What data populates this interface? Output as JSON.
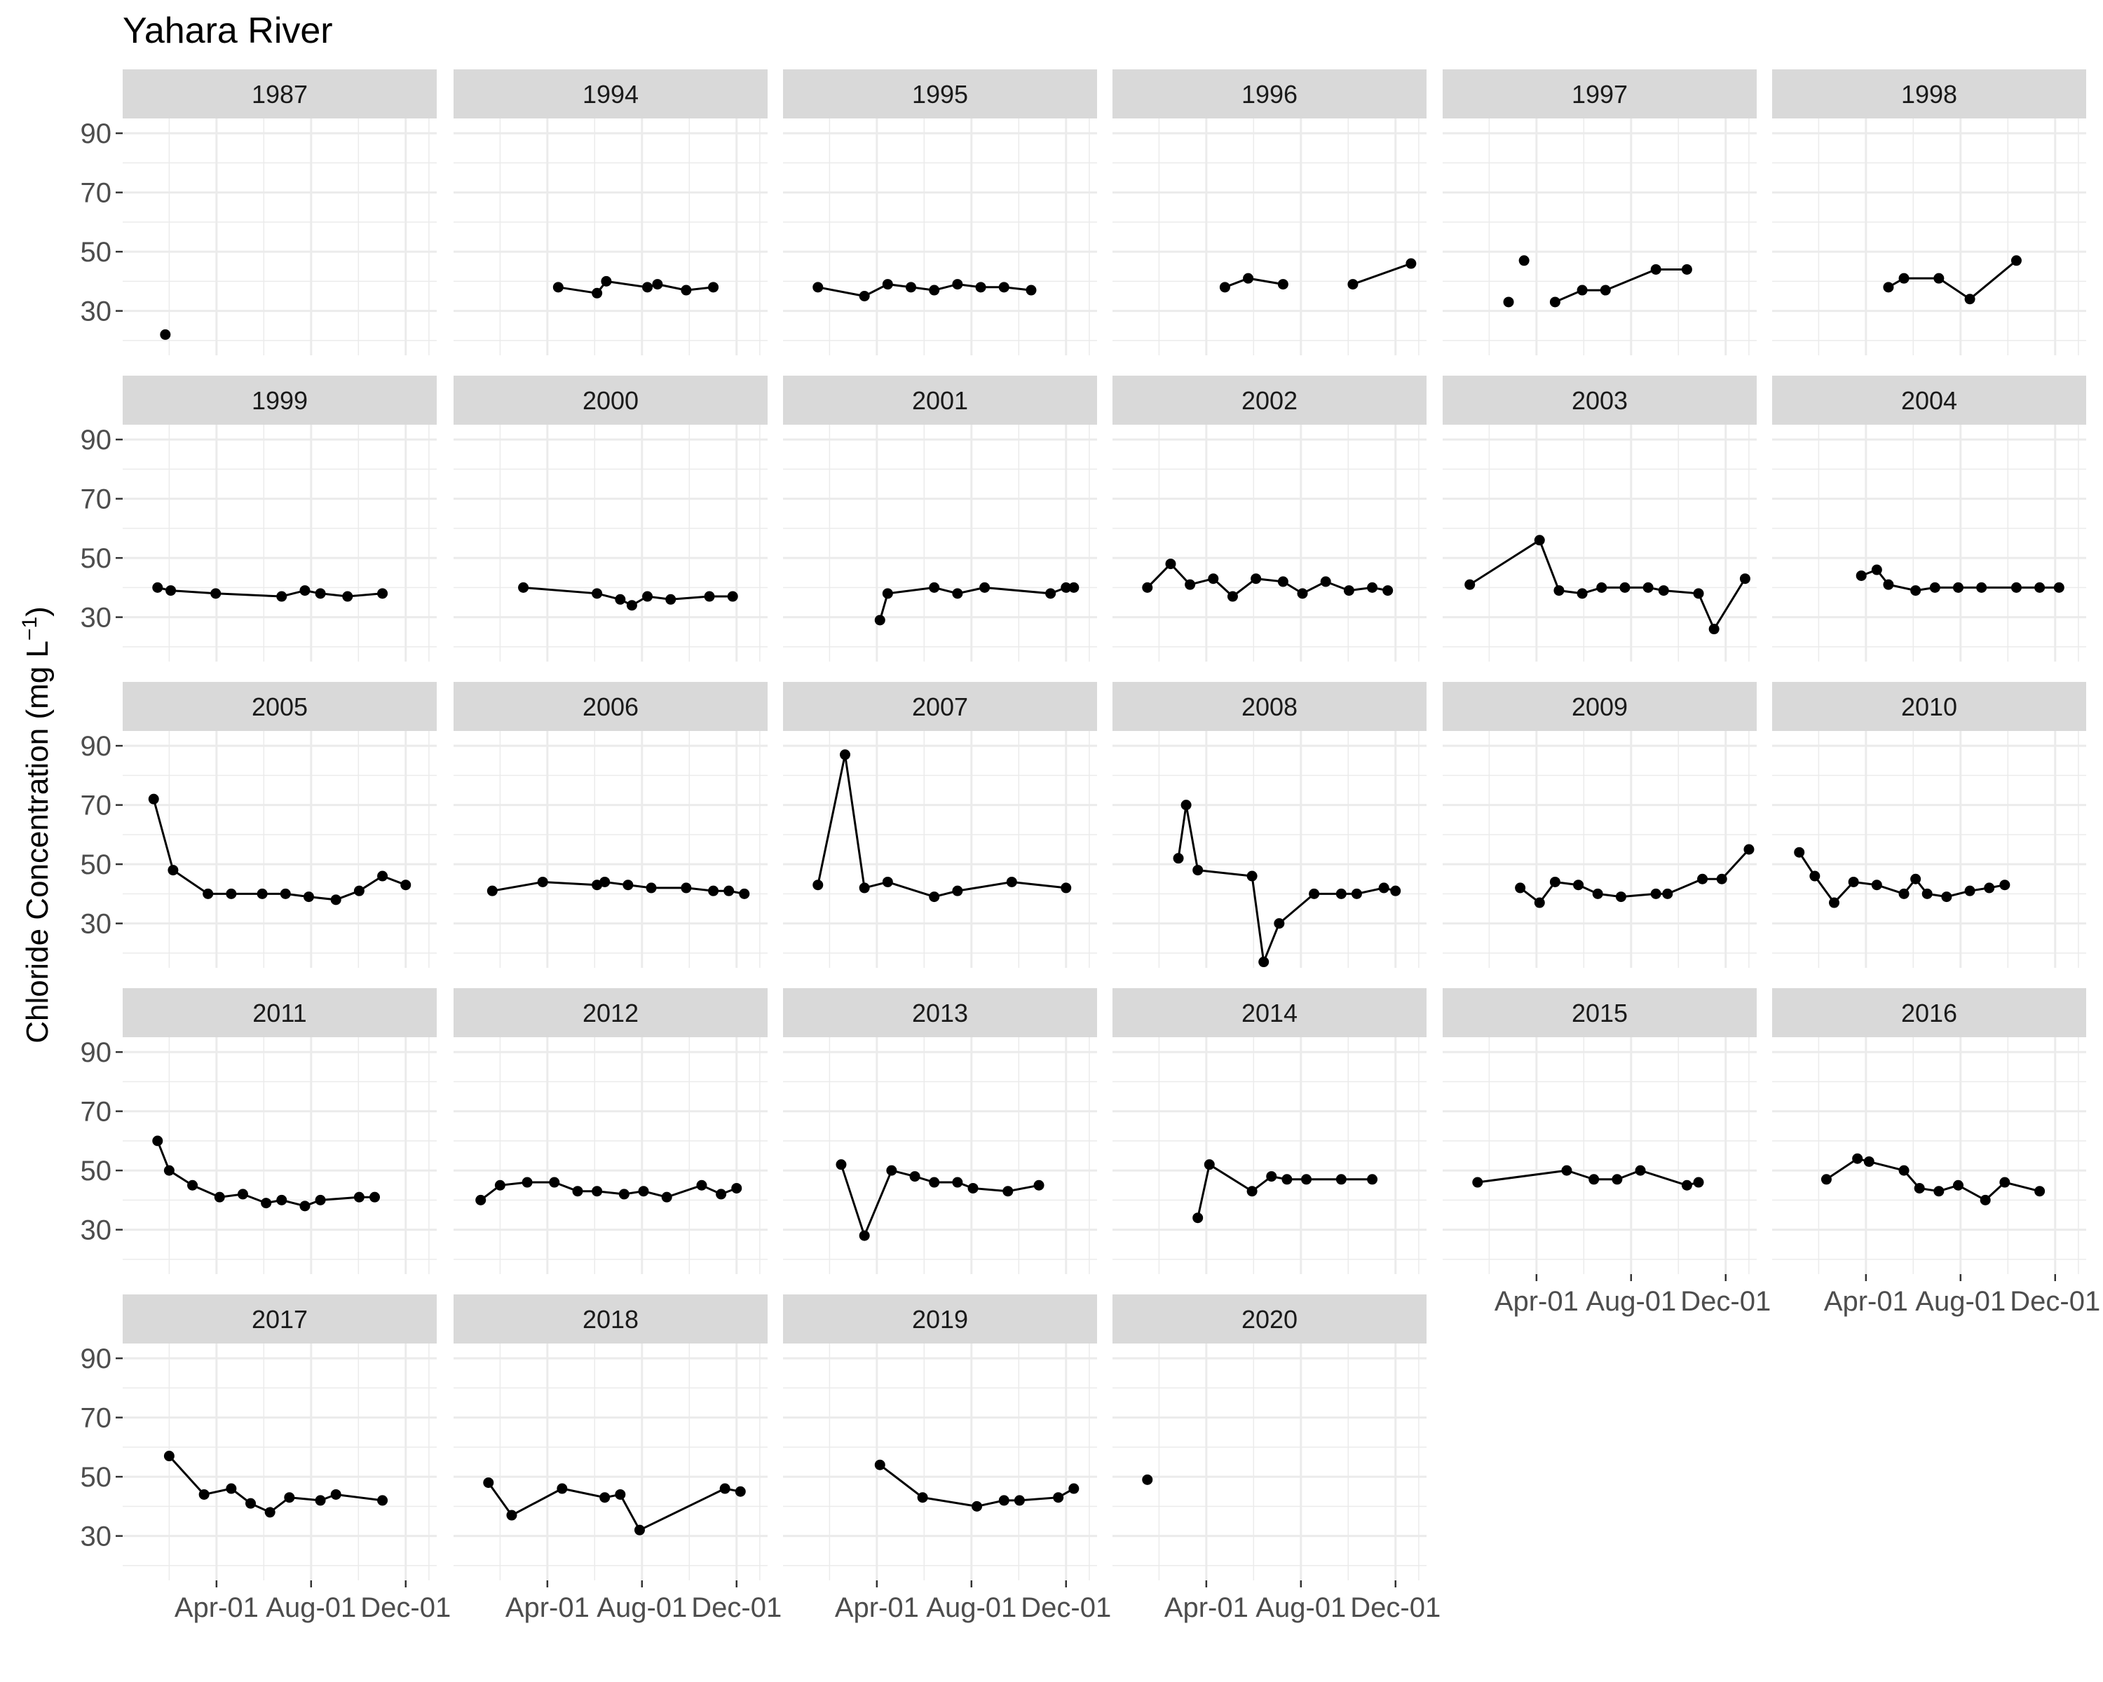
{
  "chart_data": {
    "type": "line",
    "title": "Yahara River",
    "ylabel": "Chloride Concentration (mg L",
    "ylabel_superscript": "−1",
    "ylabel_close": ")",
    "xlabel": "",
    "x_units": "day of year",
    "ylim": [
      15,
      95
    ],
    "xlim": [
      -30,
      375
    ],
    "yticks": [
      30,
      50,
      70,
      90
    ],
    "xticks": [
      {
        "label": "Apr-01",
        "value": 91
      },
      {
        "label": "Aug-01",
        "value": 213
      },
      {
        "label": "Dec-01",
        "value": 335
      }
    ],
    "grid": true,
    "legend": "none",
    "colors": {
      "strip": "#d9d9d9",
      "grid": "#ebebeb",
      "series": "#000000"
    },
    "panels": [
      {
        "year": "1987",
        "segments": [
          [
            [
              25,
              22
            ]
          ]
        ]
      },
      {
        "year": "1994",
        "segments": [
          [
            [
              105,
              38
            ],
            [
              155,
              36
            ],
            [
              167,
              40
            ],
            [
              220,
              38
            ],
            [
              233,
              39
            ],
            [
              270,
              37
            ],
            [
              305,
              38
            ]
          ]
        ]
      },
      {
        "year": "1995",
        "segments": [
          [
            [
              15,
              38
            ],
            [
              75,
              35
            ],
            [
              105,
              39
            ],
            [
              135,
              38
            ],
            [
              165,
              37
            ],
            [
              195,
              39
            ],
            [
              225,
              38
            ],
            [
              255,
              38
            ],
            [
              290,
              37
            ]
          ]
        ]
      },
      {
        "year": "1996",
        "segments": [
          [
            [
              115,
              38
            ],
            [
              145,
              41
            ],
            [
              190,
              39
            ]
          ],
          [
            [
              280,
              39
            ],
            [
              355,
              46
            ]
          ]
        ]
      },
      {
        "year": "1997",
        "segments": [
          [
            [
              55,
              33
            ]
          ],
          [
            [
              75,
              47
            ]
          ],
          [
            [
              115,
              33
            ],
            [
              150,
              37
            ],
            [
              180,
              37
            ],
            [
              245,
              44
            ],
            [
              285,
              44
            ]
          ]
        ]
      },
      {
        "year": "1998",
        "segments": [
          [
            [
              120,
              38
            ],
            [
              140,
              41
            ],
            [
              185,
              41
            ],
            [
              225,
              34
            ],
            [
              285,
              47
            ]
          ]
        ]
      },
      {
        "year": "1999",
        "segments": [
          [
            [
              15,
              40
            ],
            [
              32,
              39
            ],
            [
              90,
              38
            ],
            [
              175,
              37
            ],
            [
              205,
              39
            ],
            [
              225,
              38
            ],
            [
              260,
              37
            ],
            [
              305,
              38
            ]
          ]
        ]
      },
      {
        "year": "2000",
        "segments": [
          [
            [
              60,
              40
            ],
            [
              155,
              38
            ],
            [
              185,
              36
            ],
            [
              200,
              34
            ],
            [
              220,
              37
            ],
            [
              250,
              36
            ],
            [
              300,
              37
            ],
            [
              330,
              37
            ]
          ]
        ]
      },
      {
        "year": "2001",
        "segments": [
          [
            [
              95,
              29
            ],
            [
              105,
              38
            ],
            [
              165,
              40
            ],
            [
              195,
              38
            ],
            [
              230,
              40
            ],
            [
              315,
              38
            ],
            [
              335,
              40
            ],
            [
              345,
              40
            ]
          ]
        ]
      },
      {
        "year": "2002",
        "segments": [
          [
            [
              15,
              40
            ],
            [
              45,
              48
            ],
            [
              70,
              41
            ],
            [
              100,
              43
            ],
            [
              125,
              37
            ],
            [
              155,
              43
            ],
            [
              190,
              42
            ],
            [
              215,
              38
            ],
            [
              245,
              42
            ],
            [
              275,
              39
            ],
            [
              305,
              40
            ],
            [
              325,
              39
            ]
          ]
        ]
      },
      {
        "year": "2003",
        "segments": [
          [
            [
              5,
              41
            ],
            [
              95,
              56
            ],
            [
              120,
              39
            ],
            [
              150,
              38
            ],
            [
              175,
              40
            ],
            [
              205,
              40
            ],
            [
              235,
              40
            ],
            [
              255,
              39
            ],
            [
              300,
              38
            ],
            [
              320,
              26
            ],
            [
              360,
              43
            ]
          ]
        ]
      },
      {
        "year": "2004",
        "segments": [
          [
            [
              85,
              44
            ],
            [
              105,
              46
            ],
            [
              120,
              41
            ],
            [
              155,
              39
            ],
            [
              180,
              40
            ],
            [
              210,
              40
            ],
            [
              240,
              40
            ],
            [
              285,
              40
            ],
            [
              315,
              40
            ],
            [
              340,
              40
            ]
          ]
        ]
      },
      {
        "year": "2005",
        "segments": [
          [
            [
              10,
              72
            ],
            [
              35,
              48
            ],
            [
              80,
              40
            ],
            [
              110,
              40
            ],
            [
              150,
              40
            ],
            [
              180,
              40
            ],
            [
              210,
              39
            ],
            [
              245,
              38
            ],
            [
              275,
              41
            ],
            [
              305,
              46
            ],
            [
              335,
              43
            ]
          ]
        ]
      },
      {
        "year": "2006",
        "segments": [
          [
            [
              20,
              41
            ],
            [
              85,
              44
            ],
            [
              155,
              43
            ],
            [
              165,
              44
            ],
            [
              195,
              43
            ],
            [
              225,
              42
            ],
            [
              270,
              42
            ],
            [
              305,
              41
            ],
            [
              325,
              41
            ],
            [
              345,
              40
            ]
          ]
        ]
      },
      {
        "year": "2007",
        "segments": [
          [
            [
              15,
              43
            ],
            [
              50,
              87
            ],
            [
              75,
              42
            ],
            [
              105,
              44
            ],
            [
              165,
              39
            ],
            [
              195,
              41
            ],
            [
              265,
              44
            ],
            [
              335,
              42
            ]
          ]
        ]
      },
      {
        "year": "2008",
        "segments": [
          [
            [
              55,
              52
            ],
            [
              65,
              70
            ],
            [
              80,
              48
            ],
            [
              150,
              46
            ],
            [
              165,
              17
            ],
            [
              185,
              30
            ],
            [
              230,
              40
            ],
            [
              265,
              40
            ],
            [
              285,
              40
            ],
            [
              320,
              42
            ],
            [
              335,
              41
            ]
          ]
        ]
      },
      {
        "year": "2009",
        "segments": [
          [
            [
              70,
              42
            ],
            [
              95,
              37
            ],
            [
              115,
              44
            ],
            [
              145,
              43
            ],
            [
              170,
              40
            ],
            [
              200,
              39
            ],
            [
              245,
              40
            ],
            [
              260,
              40
            ],
            [
              305,
              45
            ],
            [
              330,
              45
            ],
            [
              365,
              55
            ]
          ]
        ]
      },
      {
        "year": "2010",
        "segments": [
          [
            [
              5,
              54
            ],
            [
              25,
              46
            ],
            [
              50,
              37
            ],
            [
              75,
              44
            ],
            [
              105,
              43
            ],
            [
              140,
              40
            ],
            [
              155,
              45
            ],
            [
              170,
              40
            ],
            [
              195,
              39
            ],
            [
              225,
              41
            ],
            [
              250,
              42
            ],
            [
              270,
              43
            ]
          ]
        ]
      },
      {
        "year": "2011",
        "segments": [
          [
            [
              15,
              60
            ],
            [
              30,
              50
            ],
            [
              60,
              45
            ],
            [
              95,
              41
            ],
            [
              125,
              42
            ],
            [
              155,
              39
            ],
            [
              175,
              40
            ],
            [
              205,
              38
            ],
            [
              225,
              40
            ],
            [
              275,
              41
            ],
            [
              295,
              41
            ]
          ]
        ]
      },
      {
        "year": "2012",
        "segments": [
          [
            [
              5,
              40
            ],
            [
              30,
              45
            ],
            [
              65,
              46
            ],
            [
              100,
              46
            ],
            [
              130,
              43
            ],
            [
              155,
              43
            ],
            [
              190,
              42
            ],
            [
              215,
              43
            ],
            [
              245,
              41
            ],
            [
              290,
              45
            ],
            [
              315,
              42
            ],
            [
              335,
              44
            ]
          ]
        ]
      },
      {
        "year": "2013",
        "segments": [
          [
            [
              45,
              52
            ],
            [
              75,
              28
            ],
            [
              110,
              50
            ],
            [
              140,
              48
            ],
            [
              165,
              46
            ],
            [
              195,
              46
            ],
            [
              215,
              44
            ],
            [
              260,
              43
            ],
            [
              300,
              45
            ]
          ]
        ]
      },
      {
        "year": "2014",
        "segments": [
          [
            [
              80,
              34
            ],
            [
              95,
              52
            ],
            [
              150,
              43
            ],
            [
              175,
              48
            ],
            [
              195,
              47
            ],
            [
              220,
              47
            ],
            [
              265,
              47
            ],
            [
              305,
              47
            ]
          ]
        ]
      },
      {
        "year": "2015",
        "segments": [
          [
            [
              15,
              46
            ],
            [
              130,
              50
            ],
            [
              165,
              47
            ],
            [
              195,
              47
            ],
            [
              225,
              50
            ],
            [
              285,
              45
            ],
            [
              300,
              46
            ]
          ]
        ]
      },
      {
        "year": "2016",
        "segments": [
          [
            [
              40,
              47
            ],
            [
              80,
              54
            ],
            [
              95,
              53
            ],
            [
              140,
              50
            ],
            [
              160,
              44
            ],
            [
              185,
              43
            ],
            [
              210,
              45
            ],
            [
              245,
              40
            ],
            [
              270,
              46
            ],
            [
              315,
              43
            ]
          ]
        ]
      },
      {
        "year": "2017",
        "segments": [
          [
            [
              30,
              57
            ],
            [
              75,
              44
            ],
            [
              110,
              46
            ],
            [
              135,
              41
            ],
            [
              160,
              38
            ],
            [
              185,
              43
            ],
            [
              225,
              42
            ],
            [
              245,
              44
            ],
            [
              305,
              42
            ]
          ]
        ]
      },
      {
        "year": "2018",
        "segments": [
          [
            [
              15,
              48
            ],
            [
              45,
              37
            ],
            [
              110,
              46
            ],
            [
              165,
              43
            ],
            [
              185,
              44
            ],
            [
              210,
              32
            ],
            [
              320,
              46
            ],
            [
              340,
              45
            ]
          ]
        ]
      },
      {
        "year": "2019",
        "segments": [
          [
            [
              95,
              54
            ],
            [
              150,
              43
            ],
            [
              220,
              40
            ],
            [
              255,
              42
            ],
            [
              275,
              42
            ],
            [
              325,
              43
            ],
            [
              345,
              46
            ]
          ]
        ]
      },
      {
        "year": "2020",
        "segments": [
          [
            [
              15,
              49
            ]
          ]
        ]
      }
    ]
  }
}
